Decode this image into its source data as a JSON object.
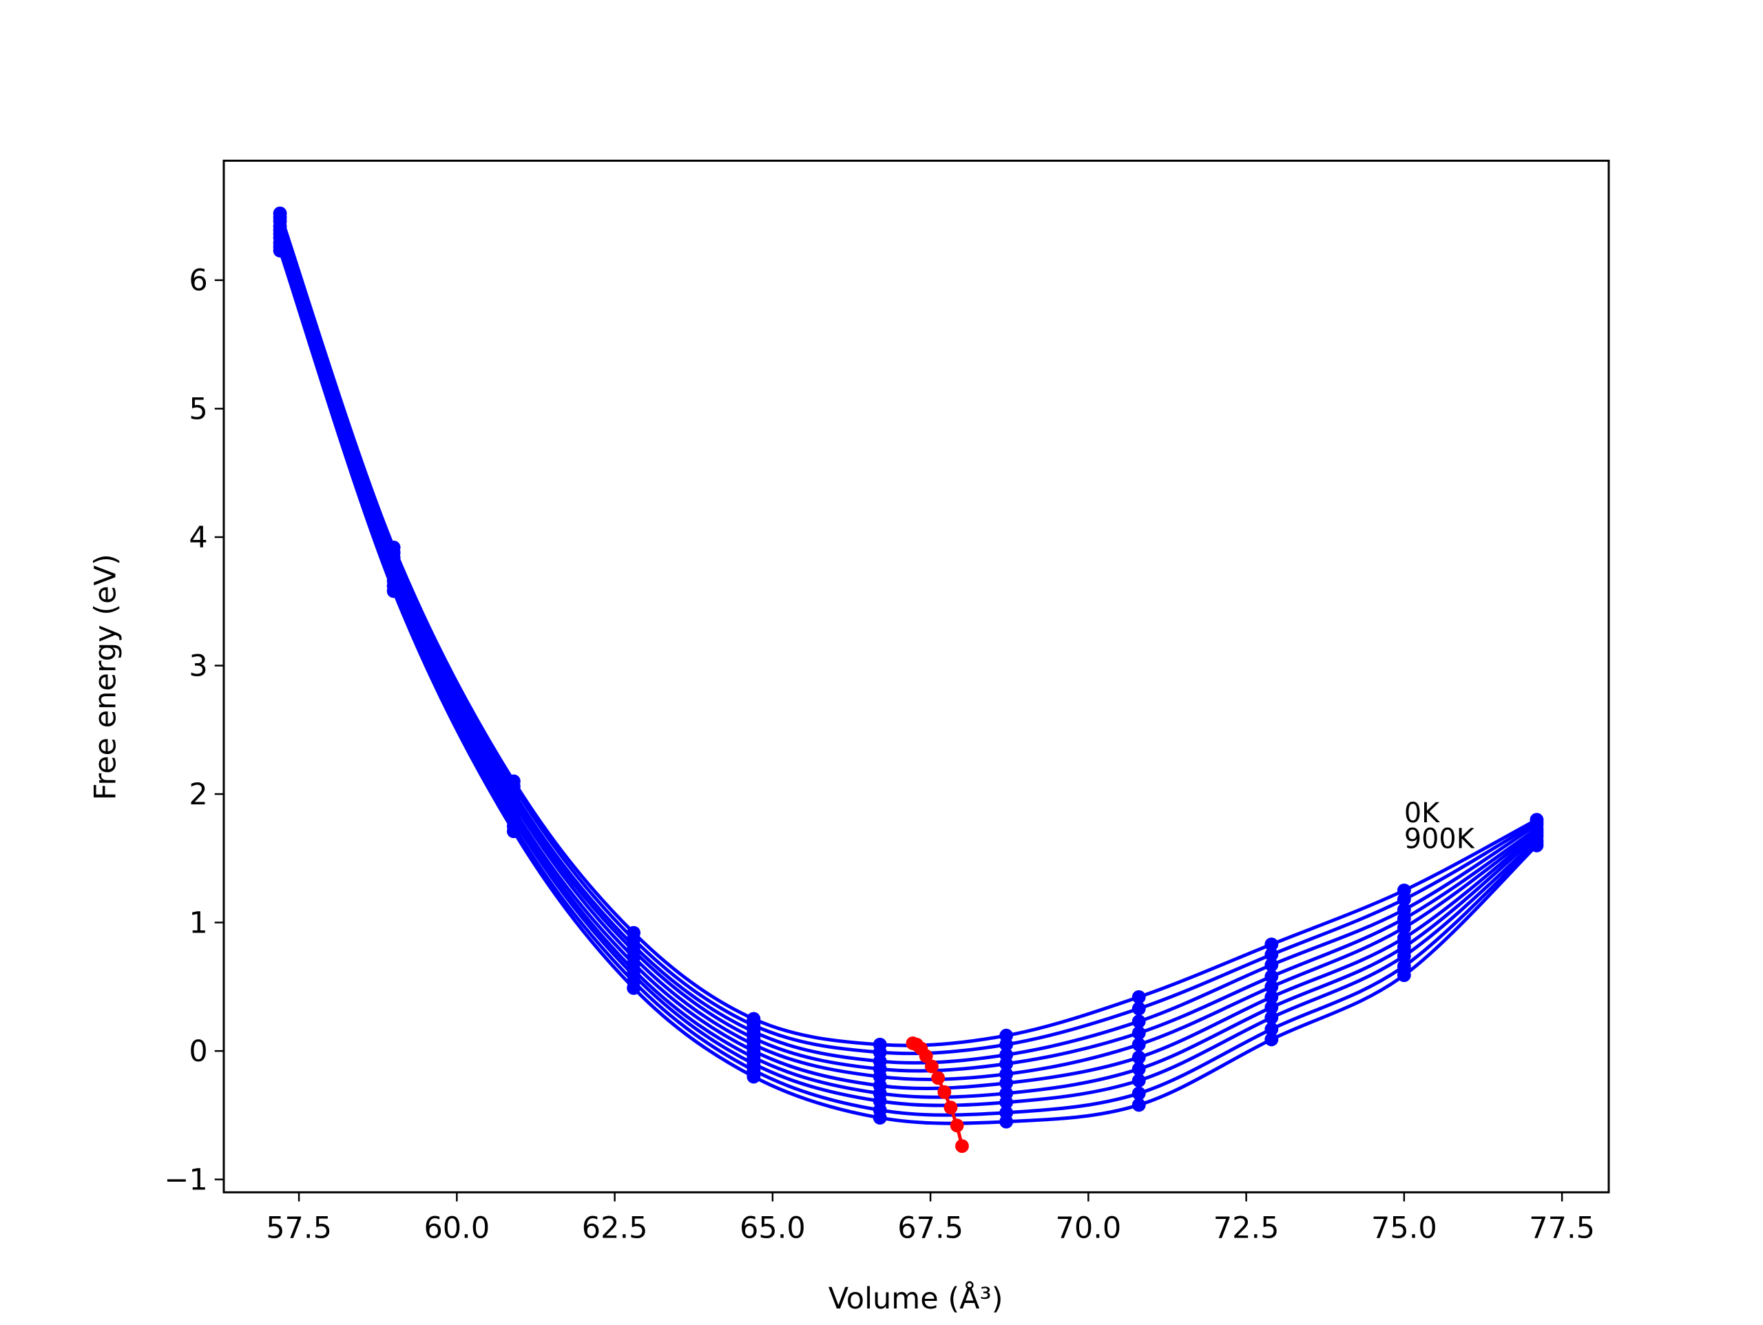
{
  "chart_data": {
    "type": "line",
    "xlabel": "Volume (Å³)",
    "ylabel": "Free energy (eV)",
    "x": [
      57.2,
      59.0,
      60.9,
      62.8,
      64.7,
      66.7,
      68.7,
      70.8,
      72.9,
      75.0,
      77.1
    ],
    "series": [
      {
        "color": "#0000ff",
        "values": [
          6.52,
          3.92,
          2.1,
          0.92,
          0.25,
          0.05,
          0.12,
          0.42,
          0.83,
          1.25,
          1.8
        ]
      },
      {
        "color": "#0000ff",
        "values": [
          6.49,
          3.88,
          2.06,
          0.87,
          0.2,
          -0.01,
          0.05,
          0.33,
          0.75,
          1.18,
          1.78
        ]
      },
      {
        "color": "#0000ff",
        "values": [
          6.46,
          3.84,
          2.01,
          0.82,
          0.15,
          -0.08,
          -0.03,
          0.23,
          0.67,
          1.1,
          1.76
        ]
      },
      {
        "color": "#0000ff",
        "values": [
          6.42,
          3.81,
          1.97,
          0.78,
          0.1,
          -0.14,
          -0.1,
          0.14,
          0.58,
          1.03,
          1.73
        ]
      },
      {
        "color": "#0000ff",
        "values": [
          6.39,
          3.77,
          1.93,
          0.73,
          0.05,
          -0.2,
          -0.18,
          0.05,
          0.5,
          0.96,
          1.71
        ]
      },
      {
        "color": "#0000ff",
        "values": [
          6.36,
          3.73,
          1.88,
          0.68,
          0.0,
          -0.27,
          -0.25,
          -0.05,
          0.42,
          0.88,
          1.69
        ]
      },
      {
        "color": "#0000ff",
        "values": [
          6.33,
          3.69,
          1.84,
          0.63,
          -0.05,
          -0.33,
          -0.33,
          -0.14,
          0.34,
          0.81,
          1.67
        ]
      },
      {
        "color": "#0000ff",
        "values": [
          6.29,
          3.66,
          1.8,
          0.59,
          -0.1,
          -0.39,
          -0.4,
          -0.23,
          0.26,
          0.74,
          1.64
        ]
      },
      {
        "color": "#0000ff",
        "values": [
          6.26,
          3.62,
          1.75,
          0.54,
          -0.15,
          -0.46,
          -0.48,
          -0.33,
          0.17,
          0.66,
          1.62
        ]
      },
      {
        "color": "#0000ff",
        "values": [
          6.23,
          3.58,
          1.71,
          0.49,
          -0.2,
          -0.52,
          -0.55,
          -0.42,
          0.09,
          0.59,
          1.6
        ]
      }
    ],
    "minima": {
      "color": "#ff0000",
      "x": [
        67.22,
        67.28,
        67.35,
        67.43,
        67.52,
        67.62,
        67.72,
        67.82,
        67.92,
        68.0
      ],
      "values": [
        0.06,
        0.05,
        0.02,
        -0.04,
        -0.12,
        -0.21,
        -0.32,
        -0.44,
        -0.58,
        -0.74
      ]
    },
    "annotations": [
      {
        "text": "0K",
        "x": 75.0,
        "y": 1.86
      },
      {
        "text": "900K",
        "x": 75.0,
        "y": 1.66
      }
    ],
    "xlim": [
      56.31,
      78.24
    ],
    "ylim": [
      -1.1,
      6.93
    ],
    "xticks": [
      57.5,
      {
        "value": 60,
        "label": "60.0"
      },
      62.5,
      {
        "value": 65,
        "label": "65.0"
      },
      67.5,
      {
        "value": 70,
        "label": "70.0"
      },
      72.5,
      {
        "value": 75,
        "label": "75.0"
      },
      77.5
    ],
    "yticks": [
      {
        "value": -1,
        "label": "−1"
      },
      0,
      1,
      2,
      3,
      4,
      5,
      6
    ]
  }
}
